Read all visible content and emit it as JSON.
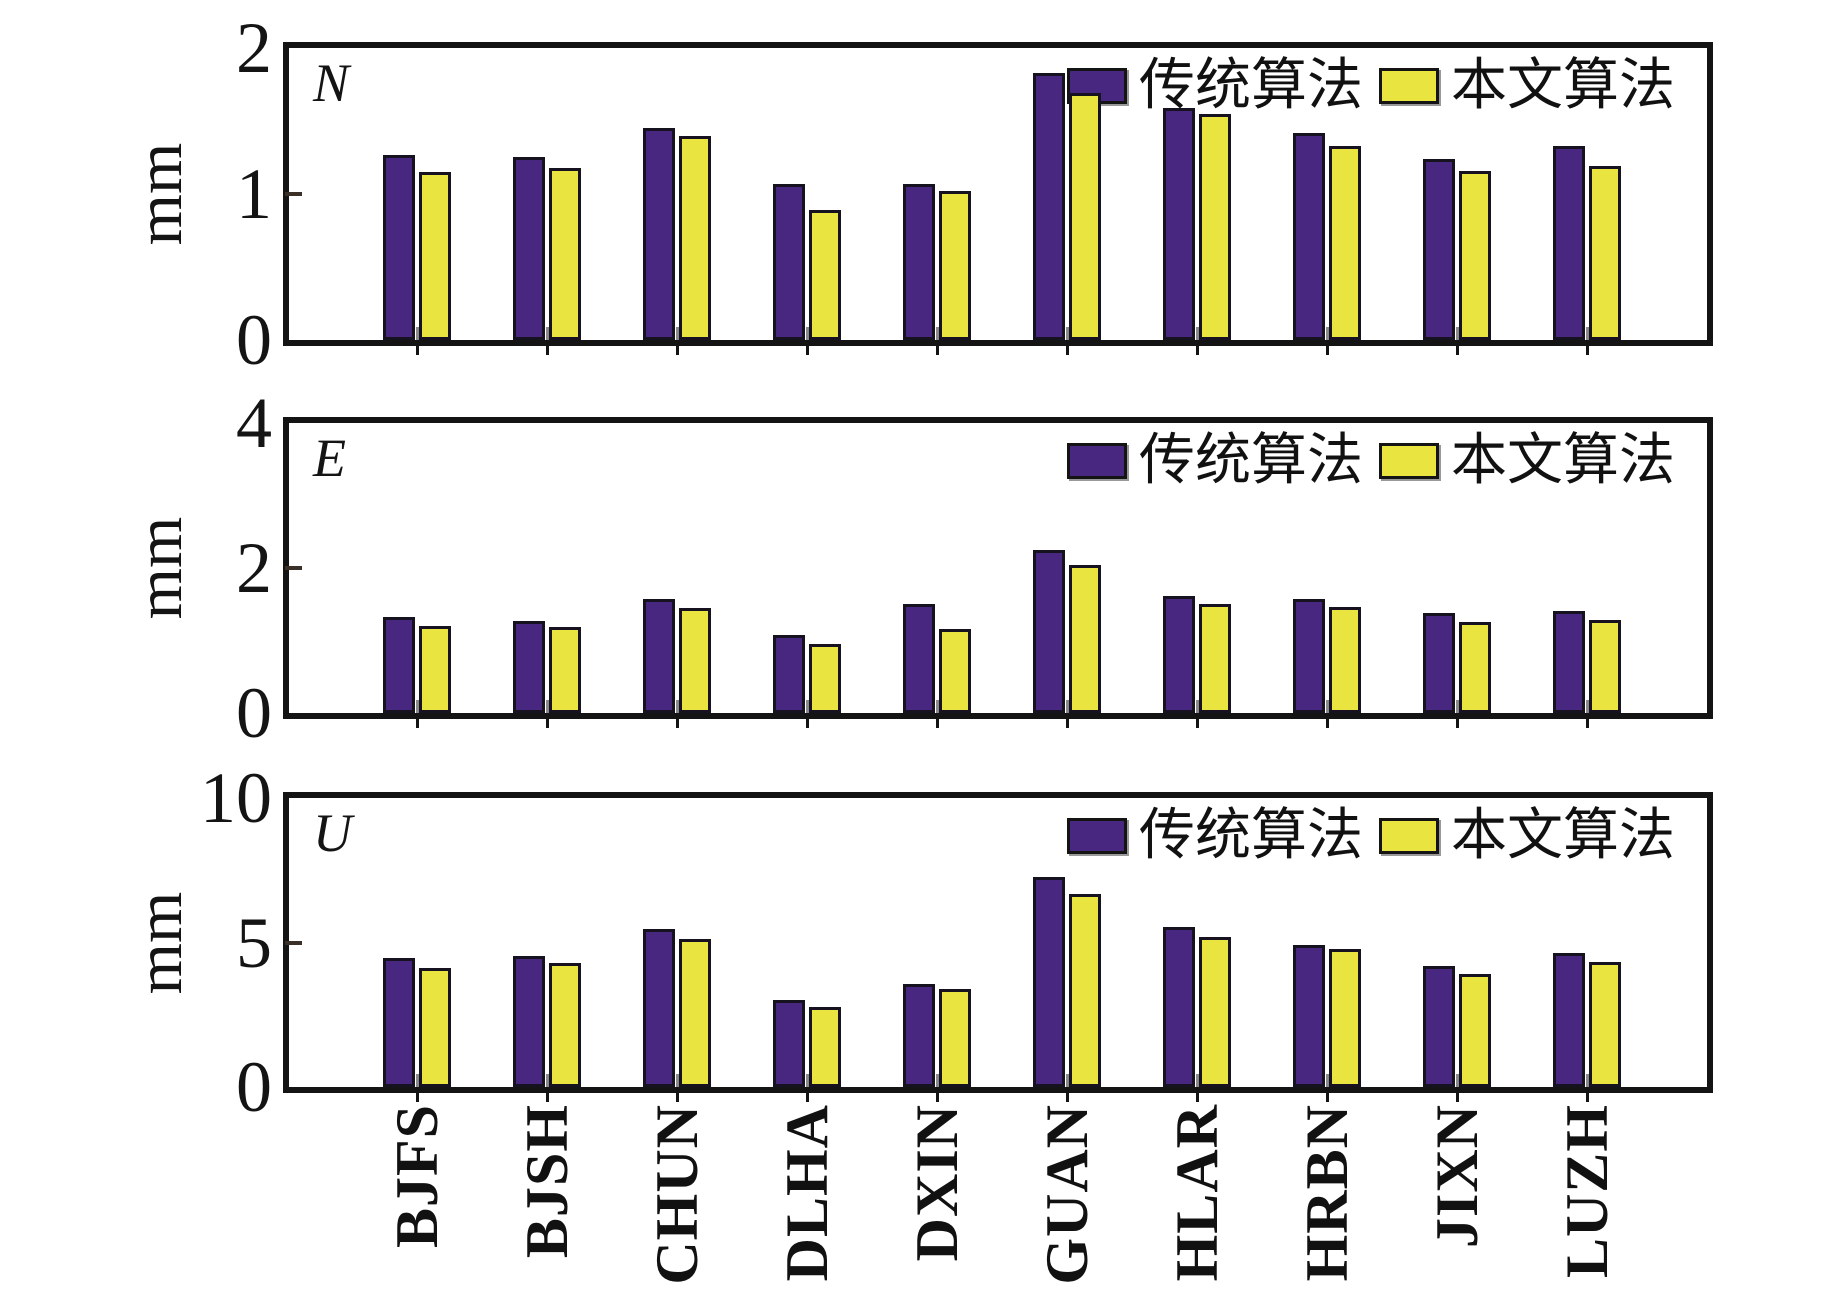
{
  "figure": {
    "y_axis_unit_label": "mm",
    "legend": {
      "series1": "传统算法",
      "series2": "本文算法"
    },
    "colors": {
      "series1": "#472780",
      "series2": "#EAE440",
      "frame": "#141414"
    },
    "panel_labels": [
      "N",
      "E",
      "U"
    ]
  },
  "chart_data": [
    {
      "type": "bar",
      "panel": "N",
      "ylabel": "mm",
      "ylim": [
        0,
        2
      ],
      "yticks": [
        0,
        1,
        2
      ],
      "grid": false,
      "legend_position": "top-right",
      "categories": [
        "BJFS",
        "BJSH",
        "CHUN",
        "DLHA",
        "DXIN",
        "GUAN",
        "HLAR",
        "HRBN",
        "JIXN",
        "LUZH"
      ],
      "series": [
        {
          "name": "传统算法",
          "color": "#472780",
          "values": [
            1.27,
            1.25,
            1.45,
            1.07,
            1.07,
            1.83,
            1.59,
            1.42,
            1.24,
            1.33
          ]
        },
        {
          "name": "本文算法",
          "color": "#EAE440",
          "values": [
            1.15,
            1.18,
            1.4,
            0.89,
            1.02,
            1.69,
            1.55,
            1.33,
            1.16,
            1.19
          ]
        }
      ]
    },
    {
      "type": "bar",
      "panel": "E",
      "ylabel": "mm",
      "ylim": [
        0,
        4
      ],
      "yticks": [
        0,
        2,
        4
      ],
      "grid": false,
      "legend_position": "top-right",
      "categories": [
        "BJFS",
        "BJSH",
        "CHUN",
        "DLHA",
        "DXIN",
        "GUAN",
        "HLAR",
        "HRBN",
        "JIXN",
        "LUZH"
      ],
      "series": [
        {
          "name": "传统算法",
          "color": "#472780",
          "values": [
            1.32,
            1.27,
            1.57,
            1.08,
            1.5,
            2.25,
            1.62,
            1.57,
            1.38,
            1.4
          ]
        },
        {
          "name": "本文算法",
          "color": "#EAE440",
          "values": [
            1.2,
            1.19,
            1.45,
            0.95,
            1.16,
            2.04,
            1.51,
            1.46,
            1.25,
            1.28
          ]
        }
      ]
    },
    {
      "type": "bar",
      "panel": "U",
      "ylabel": "mm",
      "ylim": [
        0,
        10
      ],
      "yticks": [
        0,
        5,
        10
      ],
      "grid": false,
      "legend_position": "top-right",
      "categories": [
        "BJFS",
        "BJSH",
        "CHUN",
        "DLHA",
        "DXIN",
        "GUAN",
        "HLAR",
        "HRBN",
        "JIXN",
        "LUZH"
      ],
      "series": [
        {
          "name": "传统算法",
          "color": "#472780",
          "values": [
            4.45,
            4.52,
            5.48,
            3.0,
            3.55,
            7.28,
            5.55,
            4.9,
            4.17,
            4.62
          ]
        },
        {
          "name": "本文算法",
          "color": "#EAE440",
          "values": [
            4.12,
            4.28,
            5.13,
            2.76,
            3.38,
            6.68,
            5.18,
            4.76,
            3.92,
            4.34
          ]
        }
      ]
    }
  ]
}
